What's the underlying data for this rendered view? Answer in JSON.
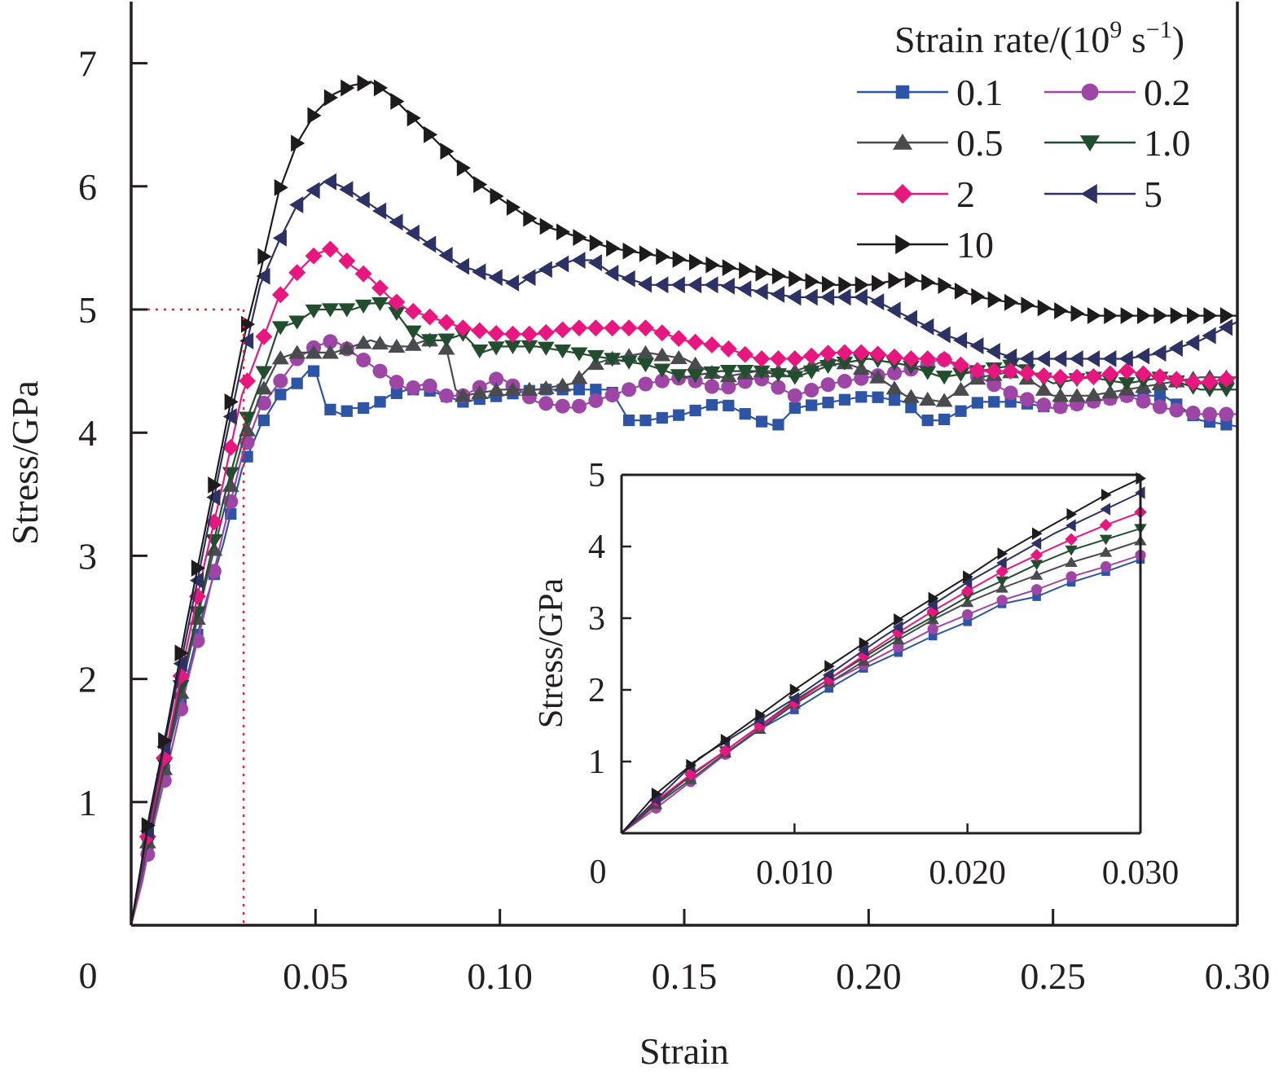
{
  "chart_data": [
    {
      "id": "main",
      "type": "line",
      "title": "",
      "xlabel": "Strain",
      "ylabel": "Stress/GPa",
      "xlim": [
        0,
        0.3
      ],
      "ylim": [
        0,
        7.5
      ],
      "xticks": [
        0.05,
        0.1,
        0.15,
        0.2,
        0.25,
        0.3
      ],
      "xtick_labels": [
        "0.05",
        "0.10",
        "0.15",
        "0.20",
        "0.25",
        "0.30"
      ],
      "yticks": [
        1,
        2,
        3,
        4,
        5,
        6,
        7
      ],
      "ytick_labels": [
        "1",
        "2",
        "3",
        "4",
        "5",
        "6",
        "7"
      ],
      "origin_label": "0",
      "grid": false,
      "legend": {
        "title_main": "Strain rate/(10",
        "title_sup1": "9",
        "title_mid": " s",
        "title_sup2": "−1",
        "title_end": ")",
        "placement": "top-right",
        "columns": 2
      },
      "annotations": [
        {
          "type": "dotted-reference",
          "color": "#e0262f",
          "x": 0.0305,
          "y": 5.0,
          "description": "Red dotted lines marking stress 5 GPa and strain ≈0.03"
        }
      ],
      "series": [
        {
          "name": "0.1",
          "color": "#2e55a5",
          "marker": "square",
          "x": [
            0,
            0.005,
            0.01,
            0.015,
            0.02,
            0.025,
            0.03,
            0.035,
            0.04,
            0.045,
            0.048,
            0.05,
            0.053,
            0.057,
            0.06,
            0.065,
            0.07,
            0.075,
            0.08,
            0.085,
            0.09,
            0.1,
            0.11,
            0.12,
            0.13,
            0.135,
            0.14,
            0.15,
            0.16,
            0.17,
            0.175,
            0.18,
            0.19,
            0.2,
            0.21,
            0.215,
            0.22,
            0.23,
            0.24,
            0.25,
            0.26,
            0.27,
            0.28,
            0.29,
            0.3
          ],
          "y": [
            0,
            0.7,
            1.4,
            2.0,
            2.6,
            3.1,
            3.7,
            4.05,
            4.3,
            4.4,
            4.5,
            4.5,
            4.2,
            4.15,
            4.2,
            4.2,
            4.3,
            4.35,
            4.35,
            4.3,
            4.25,
            4.3,
            4.35,
            4.35,
            4.35,
            4.1,
            4.1,
            4.15,
            4.25,
            4.1,
            4.05,
            4.2,
            4.25,
            4.3,
            4.25,
            4.1,
            4.1,
            4.25,
            4.25,
            4.2,
            4.25,
            4.3,
            4.3,
            4.1,
            4.05
          ]
        },
        {
          "name": "0.2",
          "color": "#9e46a6",
          "marker": "circle",
          "x": [
            0,
            0.003,
            0.006,
            0.01,
            0.015,
            0.02,
            0.025,
            0.03,
            0.035,
            0.04,
            0.045,
            0.05,
            0.055,
            0.06,
            0.065,
            0.07,
            0.075,
            0.08,
            0.085,
            0.09,
            0.1,
            0.11,
            0.12,
            0.13,
            0.14,
            0.15,
            0.16,
            0.17,
            0.18,
            0.19,
            0.2,
            0.21,
            0.22,
            0.23,
            0.24,
            0.25,
            0.26,
            0.27,
            0.28,
            0.29,
            0.3
          ],
          "y": [
            0,
            0.35,
            0.8,
            1.3,
            1.95,
            2.55,
            3.2,
            3.8,
            4.2,
            4.4,
            4.6,
            4.7,
            4.75,
            4.65,
            4.55,
            4.45,
            4.35,
            4.4,
            4.3,
            4.3,
            4.45,
            4.25,
            4.2,
            4.3,
            4.4,
            4.45,
            4.35,
            4.45,
            4.3,
            4.4,
            4.45,
            4.5,
            4.6,
            4.45,
            4.3,
            4.2,
            4.25,
            4.3,
            4.2,
            4.15,
            4.15
          ]
        },
        {
          "name": "0.5",
          "color": "#4a4b4f",
          "marker": "triangle-up",
          "x": [
            0,
            0.005,
            0.01,
            0.015,
            0.02,
            0.025,
            0.03,
            0.035,
            0.04,
            0.045,
            0.05,
            0.055,
            0.06,
            0.065,
            0.07,
            0.075,
            0.08,
            0.085,
            0.088,
            0.09,
            0.1,
            0.11,
            0.12,
            0.125,
            0.13,
            0.14,
            0.15,
            0.16,
            0.17,
            0.18,
            0.19,
            0.2,
            0.21,
            0.22,
            0.23,
            0.24,
            0.25,
            0.26,
            0.27,
            0.28,
            0.29,
            0.3
          ],
          "y": [
            0,
            0.75,
            1.4,
            2.1,
            2.75,
            3.35,
            3.9,
            4.3,
            4.6,
            4.65,
            4.65,
            4.65,
            4.7,
            4.75,
            4.7,
            4.7,
            4.75,
            4.75,
            4.35,
            4.3,
            4.35,
            4.35,
            4.4,
            4.55,
            4.6,
            4.65,
            4.6,
            4.45,
            4.5,
            4.5,
            4.6,
            4.5,
            4.3,
            4.25,
            4.45,
            4.5,
            4.3,
            4.3,
            4.35,
            4.4,
            4.45,
            4.45
          ]
        },
        {
          "name": "1.0",
          "color": "#234d2f",
          "marker": "triangle-down",
          "x": [
            0,
            0.005,
            0.01,
            0.015,
            0.02,
            0.025,
            0.03,
            0.035,
            0.04,
            0.045,
            0.05,
            0.055,
            0.06,
            0.065,
            0.07,
            0.075,
            0.08,
            0.085,
            0.09,
            0.095,
            0.1,
            0.11,
            0.12,
            0.13,
            0.14,
            0.15,
            0.16,
            0.17,
            0.18,
            0.19,
            0.2,
            0.21,
            0.22,
            0.23,
            0.24,
            0.25,
            0.26,
            0.27,
            0.28,
            0.29,
            0.3
          ],
          "y": [
            0,
            0.75,
            1.45,
            2.15,
            2.8,
            3.45,
            4.0,
            4.4,
            4.85,
            4.9,
            5.0,
            5.0,
            5.0,
            5.05,
            5.05,
            4.85,
            4.75,
            4.75,
            4.8,
            4.65,
            4.7,
            4.7,
            4.65,
            4.6,
            4.55,
            4.45,
            4.5,
            4.5,
            4.45,
            4.55,
            4.6,
            4.55,
            4.45,
            4.5,
            4.55,
            4.4,
            4.45,
            4.4,
            4.45,
            4.35,
            4.35
          ]
        },
        {
          "name": "2",
          "color": "#e8177f",
          "marker": "diamond",
          "x": [
            0,
            0.005,
            0.01,
            0.015,
            0.02,
            0.025,
            0.03,
            0.035,
            0.04,
            0.045,
            0.05,
            0.055,
            0.06,
            0.065,
            0.07,
            0.075,
            0.08,
            0.085,
            0.09,
            0.1,
            0.11,
            0.12,
            0.13,
            0.14,
            0.15,
            0.16,
            0.17,
            0.18,
            0.19,
            0.2,
            0.21,
            0.22,
            0.23,
            0.24,
            0.25,
            0.26,
            0.27,
            0.28,
            0.29,
            0.3
          ],
          "y": [
            0,
            0.8,
            1.5,
            2.25,
            2.95,
            3.6,
            4.3,
            4.7,
            5.1,
            5.3,
            5.45,
            5.5,
            5.35,
            5.25,
            5.1,
            5.0,
            4.95,
            4.9,
            4.85,
            4.8,
            4.8,
            4.85,
            4.85,
            4.85,
            4.75,
            4.7,
            4.6,
            4.6,
            4.65,
            4.65,
            4.6,
            4.6,
            4.5,
            4.5,
            4.45,
            4.45,
            4.5,
            4.45,
            4.4,
            4.45
          ]
        },
        {
          "name": "5",
          "color": "#2e3163",
          "marker": "triangle-left",
          "x": [
            0,
            0.005,
            0.01,
            0.015,
            0.02,
            0.025,
            0.03,
            0.035,
            0.04,
            0.045,
            0.05,
            0.053,
            0.057,
            0.06,
            0.065,
            0.07,
            0.075,
            0.08,
            0.085,
            0.09,
            0.095,
            0.1,
            0.105,
            0.11,
            0.115,
            0.12,
            0.125,
            0.13,
            0.14,
            0.15,
            0.16,
            0.17,
            0.18,
            0.19,
            0.2,
            0.21,
            0.22,
            0.23,
            0.24,
            0.25,
            0.26,
            0.27,
            0.28,
            0.29,
            0.3
          ],
          "y": [
            0,
            0.85,
            1.6,
            2.35,
            3.1,
            3.85,
            4.55,
            5.2,
            5.55,
            5.85,
            5.98,
            6.05,
            6.0,
            5.95,
            5.85,
            5.75,
            5.65,
            5.55,
            5.45,
            5.35,
            5.3,
            5.25,
            5.2,
            5.3,
            5.35,
            5.4,
            5.4,
            5.3,
            5.2,
            5.2,
            5.2,
            5.15,
            5.1,
            5.1,
            5.1,
            4.95,
            4.8,
            4.7,
            4.6,
            4.6,
            4.6,
            4.6,
            4.65,
            4.75,
            4.9
          ]
        },
        {
          "name": "10",
          "color": "#1e1b1c",
          "marker": "triangle-right",
          "x": [
            0,
            0.005,
            0.01,
            0.015,
            0.02,
            0.025,
            0.03,
            0.035,
            0.04,
            0.045,
            0.05,
            0.055,
            0.06,
            0.065,
            0.07,
            0.075,
            0.08,
            0.085,
            0.09,
            0.095,
            0.1,
            0.105,
            0.11,
            0.12,
            0.13,
            0.14,
            0.15,
            0.16,
            0.17,
            0.18,
            0.19,
            0.2,
            0.21,
            0.22,
            0.23,
            0.24,
            0.25,
            0.26,
            0.27,
            0.28,
            0.29,
            0.3
          ],
          "y": [
            0,
            0.9,
            1.65,
            2.45,
            3.2,
            3.95,
            4.7,
            5.3,
            5.95,
            6.35,
            6.6,
            6.75,
            6.82,
            6.85,
            6.75,
            6.6,
            6.45,
            6.3,
            6.15,
            6.0,
            5.9,
            5.8,
            5.7,
            5.6,
            5.5,
            5.45,
            5.4,
            5.35,
            5.3,
            5.25,
            5.2,
            5.2,
            5.25,
            5.2,
            5.1,
            5.05,
            5.0,
            4.95,
            4.95,
            4.95,
            4.95,
            4.95
          ]
        }
      ]
    },
    {
      "id": "inset",
      "type": "line",
      "title": "",
      "xlabel": "",
      "ylabel": "Stress/GPa",
      "xlim": [
        0,
        0.03
      ],
      "ylim": [
        0,
        5
      ],
      "xticks": [
        0.01,
        0.02,
        0.03
      ],
      "xtick_labels": [
        "0.010",
        "0.020",
        "0.030"
      ],
      "yticks": [
        1,
        2,
        3,
        4,
        5
      ],
      "ytick_labels": [
        "1",
        "2",
        "3",
        "4",
        "5"
      ],
      "origin_label": "0",
      "grid": false,
      "series": [
        {
          "name": "0.1",
          "color": "#2e55a5",
          "marker": "square",
          "x": [
            0,
            0.002,
            0.004,
            0.006,
            0.008,
            0.01,
            0.012,
            0.014,
            0.016,
            0.018,
            0.02,
            0.022,
            0.024,
            0.026,
            0.028,
            0.03
          ],
          "y": [
            0,
            0.4,
            0.75,
            1.1,
            1.45,
            1.72,
            2.02,
            2.3,
            2.52,
            2.75,
            2.95,
            3.2,
            3.3,
            3.5,
            3.65,
            3.82
          ]
        },
        {
          "name": "0.2",
          "color": "#9e46a6",
          "marker": "circle",
          "x": [
            0,
            0.002,
            0.004,
            0.006,
            0.008,
            0.01,
            0.012,
            0.014,
            0.016,
            0.018,
            0.02,
            0.022,
            0.024,
            0.026,
            0.028,
            0.03
          ],
          "y": [
            0,
            0.35,
            0.72,
            1.1,
            1.48,
            1.8,
            2.1,
            2.35,
            2.6,
            2.85,
            3.05,
            3.25,
            3.4,
            3.58,
            3.72,
            3.88
          ]
        },
        {
          "name": "0.5",
          "color": "#4a4b4f",
          "marker": "triangle-up",
          "x": [
            0,
            0.002,
            0.004,
            0.006,
            0.008,
            0.01,
            0.012,
            0.014,
            0.016,
            0.018,
            0.02,
            0.022,
            0.024,
            0.026,
            0.028,
            0.03
          ],
          "y": [
            0,
            0.4,
            0.75,
            1.12,
            1.45,
            1.8,
            2.1,
            2.4,
            2.7,
            2.98,
            3.22,
            3.42,
            3.6,
            3.78,
            3.92,
            4.08
          ]
        },
        {
          "name": "1.0",
          "color": "#234d2f",
          "marker": "triangle-down",
          "x": [
            0,
            0.002,
            0.004,
            0.006,
            0.008,
            0.01,
            0.012,
            0.014,
            0.016,
            0.018,
            0.02,
            0.022,
            0.024,
            0.026,
            0.028,
            0.03
          ],
          "y": [
            0,
            0.42,
            0.8,
            1.15,
            1.5,
            1.85,
            2.15,
            2.45,
            2.75,
            3.02,
            3.3,
            3.52,
            3.75,
            3.95,
            4.1,
            4.25
          ]
        },
        {
          "name": "2",
          "color": "#e8177f",
          "marker": "diamond",
          "x": [
            0,
            0.002,
            0.004,
            0.006,
            0.008,
            0.01,
            0.012,
            0.014,
            0.016,
            0.018,
            0.02,
            0.022,
            0.024,
            0.026,
            0.028,
            0.03
          ],
          "y": [
            0,
            0.45,
            0.82,
            1.15,
            1.5,
            1.82,
            2.15,
            2.48,
            2.8,
            3.1,
            3.38,
            3.65,
            3.88,
            4.1,
            4.3,
            4.48
          ]
        },
        {
          "name": "5",
          "color": "#2e3163",
          "marker": "triangle-left",
          "x": [
            0,
            0.0045,
            0.01,
            0.015,
            0.02,
            0.025,
            0.03
          ],
          "y": [
            0,
            1.05,
            1.88,
            2.72,
            3.5,
            4.18,
            4.75
          ]
        },
        {
          "name": "10",
          "color": "#1e1b1c",
          "marker": "triangle-right",
          "x": [
            0,
            0.002,
            0.004,
            0.006,
            0.008,
            0.01,
            0.012,
            0.014,
            0.016,
            0.018,
            0.02,
            0.022,
            0.024,
            0.026,
            0.028,
            0.03
          ],
          "y": [
            0,
            0.55,
            0.95,
            1.3,
            1.65,
            2.0,
            2.33,
            2.65,
            2.98,
            3.28,
            3.58,
            3.9,
            4.18,
            4.45,
            4.72,
            4.95
          ]
        }
      ]
    }
  ]
}
